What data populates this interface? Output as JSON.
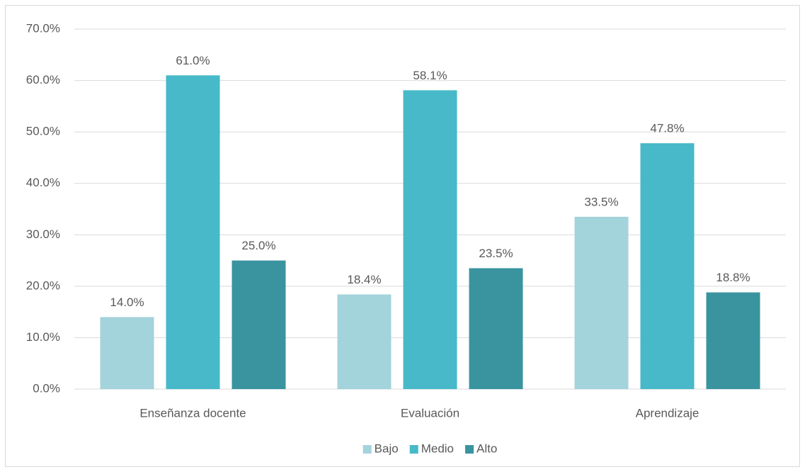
{
  "chart_data": {
    "type": "bar",
    "categories": [
      "Enseñanza docente",
      "Evaluación",
      "Aprendizaje"
    ],
    "series": [
      {
        "name": "Bajo",
        "color": "#a3d3db",
        "values": [
          14.0,
          18.4,
          33.5
        ],
        "value_labels": [
          "14.0%",
          "18.4%",
          "33.5%"
        ]
      },
      {
        "name": "Medio",
        "color": "#47b9c8",
        "values": [
          61.0,
          58.1,
          47.8
        ],
        "value_labels": [
          "61.0%",
          "58.1%",
          "47.8%"
        ]
      },
      {
        "name": "Alto",
        "color": "#3a949f",
        "values": [
          25.0,
          23.5,
          18.8
        ],
        "value_labels": [
          "25.0%",
          "23.5%",
          "18.8%"
        ]
      }
    ],
    "ylim": [
      0,
      70
    ],
    "yticks": [
      {
        "value": 0,
        "label": "0.0%"
      },
      {
        "value": 10,
        "label": "10.0%"
      },
      {
        "value": 20,
        "label": "20.0%"
      },
      {
        "value": 30,
        "label": "30.0%"
      },
      {
        "value": 40,
        "label": "40.0%"
      },
      {
        "value": 50,
        "label": "50.0%"
      },
      {
        "value": 60,
        "label": "60.0%"
      },
      {
        "value": 70,
        "label": "70.0%"
      }
    ],
    "grid": true,
    "legend": "bottom"
  }
}
